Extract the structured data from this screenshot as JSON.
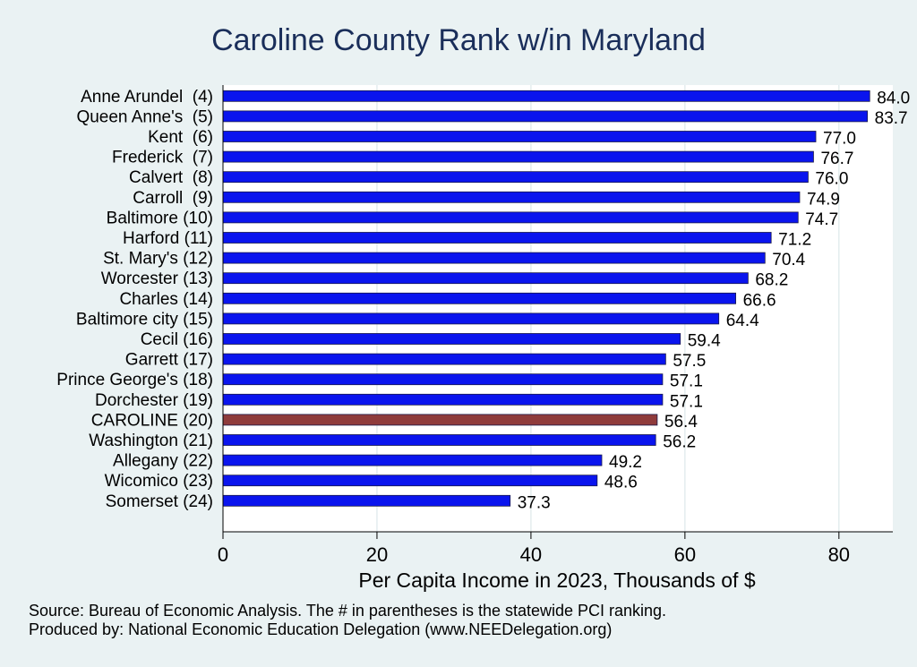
{
  "title": "Caroline County Rank w/in Maryland",
  "notes": {
    "source": "Source: Bureau of Economic Analysis. The # in parentheses is the statewide PCI ranking.",
    "producer": "Produced by: National Economic Education Delegation (www.NEEDelegation.org)"
  },
  "colors": {
    "bar": "#0a14ee",
    "highlight": "#8f3b3b",
    "plot_bg": "#ffffff",
    "page_bg": "#eaf2f3",
    "grid": "#dde8ea"
  },
  "chart_data": {
    "type": "bar",
    "orientation": "horizontal",
    "categories": [
      "Anne Arundel  (4)",
      "Queen Anne's  (5)",
      "Kent  (6)",
      "Frederick  (7)",
      "Calvert  (8)",
      "Carroll  (9)",
      "Baltimore (10)",
      "Harford (11)",
      "St. Mary's (12)",
      "Worcester (13)",
      "Charles (14)",
      "Baltimore city (15)",
      "Cecil (16)",
      "Garrett (17)",
      "Prince George's (18)",
      "Dorchester (19)",
      "CAROLINE (20)",
      "Washington (21)",
      "Allegany (22)",
      "Wicomico (23)",
      "Somerset (24)"
    ],
    "values": [
      84.0,
      83.7,
      77.0,
      76.7,
      76.0,
      74.9,
      74.7,
      71.2,
      70.4,
      68.2,
      66.6,
      64.4,
      59.4,
      57.5,
      57.1,
      57.1,
      56.4,
      56.2,
      49.2,
      48.6,
      37.3
    ],
    "value_labels": [
      "84.0",
      "83.7",
      "77.0",
      "76.7",
      "76.0",
      "74.9",
      "74.7",
      "71.2",
      "70.4",
      "68.2",
      "66.6",
      "64.4",
      "59.4",
      "57.5",
      "57.1",
      "57.1",
      "56.4",
      "56.2",
      "49.2",
      "48.6",
      "37.3"
    ],
    "highlight": "CAROLINE (20)",
    "title": "Caroline County Rank w/in Maryland",
    "xlabel": "Per Capita Income in 2023, Thousands of $",
    "ylabel": "",
    "xlim": [
      0,
      87
    ],
    "xticks": [
      0,
      20,
      40,
      60,
      80
    ],
    "xtick_labels": [
      "0",
      "20",
      "40",
      "60",
      "80"
    ],
    "grid": true
  }
}
